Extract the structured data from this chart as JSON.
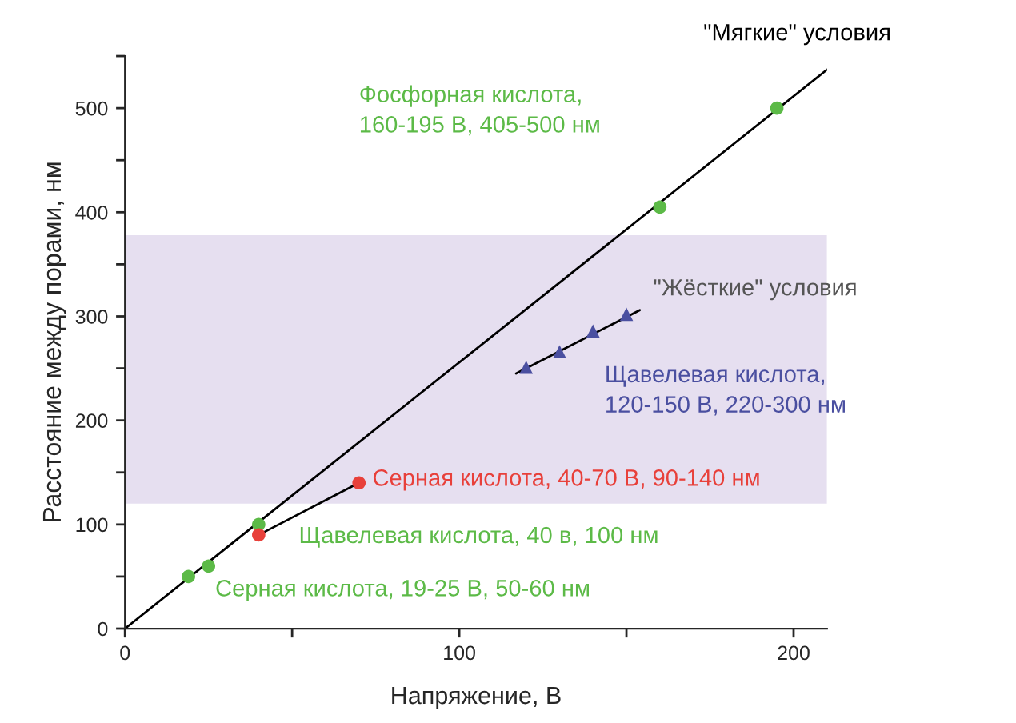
{
  "chart_data": {
    "type": "scatter",
    "xlabel": "Напряжение, В",
    "ylabel": "Расстояние между порами, нм",
    "xlim": [
      0,
      210
    ],
    "ylim": [
      0,
      550
    ],
    "xticks": [
      0,
      100,
      200
    ],
    "yticks": [
      0,
      100,
      200,
      300,
      400,
      500
    ],
    "grid": false,
    "legend": false,
    "bands": [
      {
        "axis": "y",
        "from": 120,
        "to": 378,
        "label": "\"Жёсткие\" условия",
        "color": "#e6dff0"
      }
    ],
    "series": [
      {
        "type": "line",
        "name": "\"Мягкие\" условия",
        "color": "#000000",
        "marker": "none",
        "x": [
          0,
          210
        ],
        "values": [
          0,
          537
        ]
      },
      {
        "type": "line",
        "color": "#000000",
        "marker": "none",
        "x": [
          40,
          70
        ],
        "values": [
          90,
          140
        ]
      },
      {
        "type": "line",
        "color": "#000000",
        "marker": "none",
        "x": [
          117,
          154
        ],
        "values": [
          245,
          306
        ]
      },
      {
        "color": "#5cba47",
        "marker": "circle",
        "x": [
          19,
          25,
          40,
          160,
          195
        ],
        "values": [
          50,
          60,
          100,
          405,
          500
        ]
      },
      {
        "name": "Серная кислота, 40-70 В, 90-140 нм",
        "color": "#e8403a",
        "marker": "circle",
        "x": [
          40,
          70
        ],
        "values": [
          90,
          140
        ]
      },
      {
        "name": "Щавелевая кислота,\n120-150 В, 220-300 нм",
        "color": "#4a4fa0",
        "marker": "triangle",
        "x": [
          120,
          130,
          140,
          150
        ],
        "values": [
          251,
          266,
          286,
          302
        ]
      }
    ],
    "annotations": [
      "Фосфорная кислота,\n160-195 В, 405-500 нм",
      "Щавелевая кислота, 40 в, 100 нм",
      "Серная кислота, 19-25 В, 50-60 нм"
    ]
  }
}
